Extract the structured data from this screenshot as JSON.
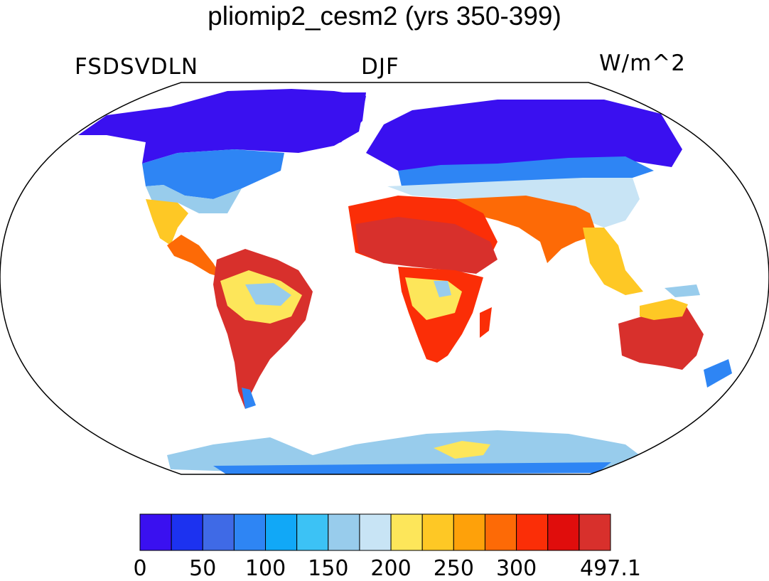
{
  "title": "pliomip2_cesm2 (yrs 350-399)",
  "left_label": "FSDSVDLN",
  "center_label": "DJF",
  "right_label": "W/m^2",
  "colorbar": {
    "colors": [
      "#3a10f0",
      "#1c32f0",
      "#3f6ae6",
      "#2e85f4",
      "#11a8f7",
      "#3cc2f5",
      "#98ccec",
      "#c8e4f5",
      "#fde65a",
      "#fec825",
      "#fea10a",
      "#fd6a06",
      "#fb2e07",
      "#e00d0c",
      "#d8302c"
    ],
    "labels": [
      "0",
      "50",
      "100",
      "150",
      "200",
      "250",
      "300",
      "497.1"
    ]
  }
}
